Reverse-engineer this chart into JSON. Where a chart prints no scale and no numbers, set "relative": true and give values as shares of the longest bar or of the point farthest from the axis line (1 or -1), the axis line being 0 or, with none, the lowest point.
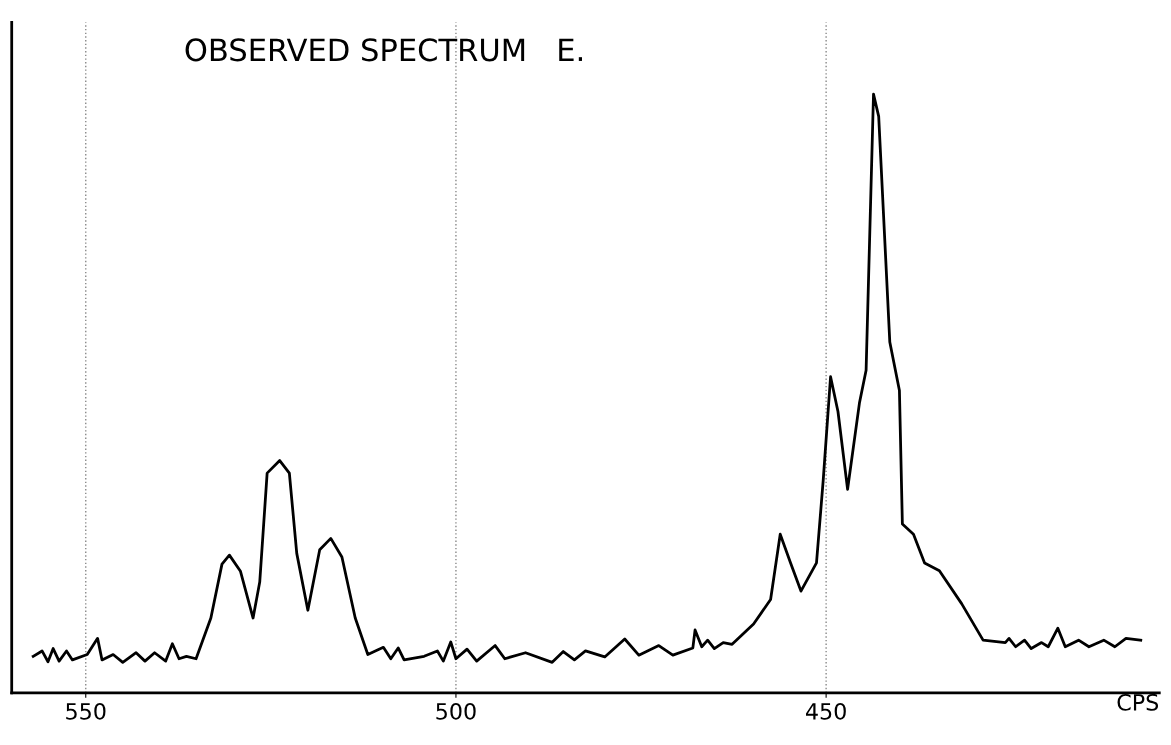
{
  "chart_data": {
    "type": "line",
    "title": "OBSERVED SPECTRUM   E.",
    "xlabel": "CPS",
    "relative": true,
    "xlim": [
      560,
      405
    ],
    "xticks": [
      550,
      500,
      450
    ],
    "grid": "x",
    "marker": "none",
    "line_style": "solid",
    "series": [
      {
        "color": "#000000",
        "x": [
          557.1,
          555.9,
          555.1,
          554.4,
          553.6,
          552.6,
          551.8,
          549.8,
          548.4,
          547.8,
          546.3,
          545.0,
          543.2,
          542.0,
          540.7,
          539.2,
          538.3,
          537.4,
          536.4,
          535.1,
          533.1,
          531.6,
          530.6,
          529.1,
          527.4,
          526.5,
          525.5,
          523.8,
          522.5,
          521.5,
          520.0,
          518.4,
          516.9,
          515.4,
          513.6,
          511.9,
          509.8,
          508.8,
          507.8,
          507.0,
          504.3,
          502.5,
          501.7,
          500.7,
          500.0,
          498.5,
          497.2,
          494.7,
          493.4,
          490.6,
          487.0,
          485.5,
          484.0,
          482.5,
          479.9,
          477.2,
          475.3,
          472.6,
          470.7,
          468.0,
          467.7,
          466.8,
          466.0,
          465.1,
          463.9,
          462.7,
          459.8,
          457.5,
          456.2,
          454.8,
          453.4,
          451.3,
          450.4,
          449.4,
          448.4,
          447.1,
          445.5,
          444.6,
          443.6,
          442.9,
          441.4,
          440.1,
          439.7,
          438.2,
          436.7,
          434.7,
          431.7,
          428.8,
          425.8,
          425.3,
          424.4,
          423.2,
          422.3,
          420.9,
          420.0,
          418.7,
          417.7,
          415.9,
          414.5,
          412.5,
          411.0,
          409.5,
          407.5
        ],
        "values": [
          0.061,
          0.07,
          0.052,
          0.074,
          0.053,
          0.07,
          0.055,
          0.064,
          0.091,
          0.055,
          0.064,
          0.051,
          0.067,
          0.053,
          0.067,
          0.053,
          0.082,
          0.057,
          0.061,
          0.057,
          0.125,
          0.215,
          0.23,
          0.203,
          0.125,
          0.185,
          0.367,
          0.388,
          0.367,
          0.233,
          0.138,
          0.239,
          0.258,
          0.227,
          0.125,
          0.064,
          0.076,
          0.057,
          0.075,
          0.055,
          0.061,
          0.07,
          0.053,
          0.085,
          0.057,
          0.073,
          0.053,
          0.079,
          0.057,
          0.067,
          0.051,
          0.069,
          0.055,
          0.07,
          0.06,
          0.09,
          0.063,
          0.079,
          0.063,
          0.075,
          0.105,
          0.077,
          0.088,
          0.074,
          0.084,
          0.081,
          0.115,
          0.156,
          0.265,
          0.217,
          0.17,
          0.217,
          0.354,
          0.528,
          0.47,
          0.34,
          0.484,
          0.539,
          1.0,
          0.963,
          0.586,
          0.505,
          0.282,
          0.265,
          0.217,
          0.204,
          0.149,
          0.088,
          0.084,
          0.091,
          0.077,
          0.088,
          0.074,
          0.084,
          0.077,
          0.108,
          0.077,
          0.088,
          0.077,
          0.088,
          0.077,
          0.091,
          0.088
        ]
      }
    ]
  }
}
